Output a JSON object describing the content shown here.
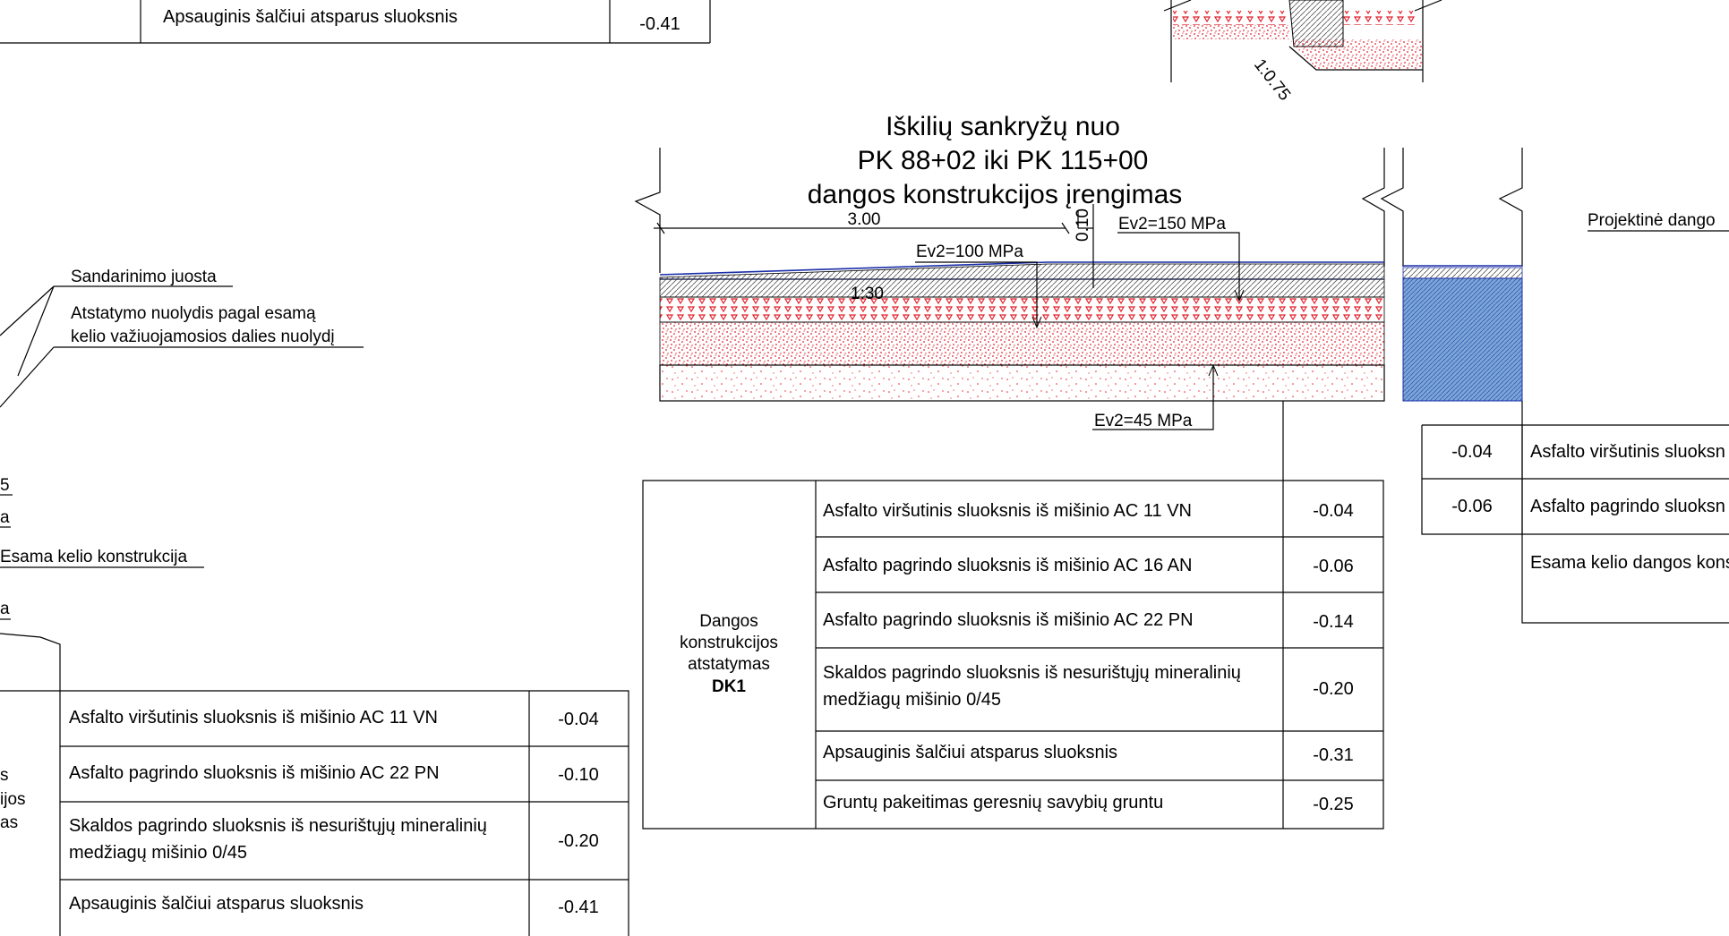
{
  "title": {
    "line1": "Iškilių sankryžų nuo",
    "line2": "PK 88+02 iki PK 115+00",
    "line3": "dangos konstrukcijos įrengimas"
  },
  "dimensions": {
    "width": "3.00",
    "slope": "1:30",
    "thickness": "0.10",
    "side_slope": "1:0.75"
  },
  "moduli": {
    "ev_top_left": "Ev2=100 MPa",
    "ev_top_right": "Ev2=150 MPa",
    "ev_bottom": "Ev2=45 MPa"
  },
  "leaders": {
    "sealing_strip": "Sandarinimo juosta",
    "slope_note_line1": "Atstatymo nuolydis pagal esamą",
    "slope_note_line2": "kelio važiuojamosios dalies nuolydį",
    "existing_road": "Esama kelio konstrukcija",
    "partial_5": "5",
    "partial_a1": "a",
    "partial_a2": "a",
    "projected_pavement": "Projektinė dango"
  },
  "table_top_left": {
    "rows": [
      {
        "label": "Apsauginis šalčiui atsparus sluoksnis",
        "value": "-0.41"
      }
    ]
  },
  "table_dk1": {
    "heading_line1": "Dangos",
    "heading_line2": "konstrukcijos",
    "heading_line3": "atstatymas",
    "heading_code": "DK1",
    "rows": [
      {
        "label": "Asfalto viršutinis sluoksnis iš mišinio AC 11 VN",
        "value": "-0.04"
      },
      {
        "label": "Asfalto pagrindo sluoksnis iš mišinio AC 16 AN",
        "value": "-0.06"
      },
      {
        "label": "Asfalto pagrindo sluoksnis iš mišinio AC 22 PN",
        "value": "-0.14"
      },
      {
        "label": "Skaldos pagrindo sluoksnis iš nesurištųjų mineralinių",
        "label2": "medžiagų mišinio 0/45",
        "value": "-0.20"
      },
      {
        "label": "Apsauginis šalčiui atsparus sluoksnis",
        "value": "-0.31"
      },
      {
        "label": "Gruntų pakeitimas geresnių savybių gruntu",
        "value": "-0.25"
      }
    ]
  },
  "table_bottom_left": {
    "heading_frag1": "s",
    "heading_frag2": "ijos",
    "heading_frag3": "as",
    "rows": [
      {
        "label": "Asfalto viršutinis sluoksnis iš mišinio AC 11 VN",
        "value": "-0.04"
      },
      {
        "label": "Asfalto pagrindo sluoksnis iš mišinio AC 22 PN",
        "value": "-0.10"
      },
      {
        "label": "Skaldos pagrindo sluoksnis iš nesurištųjų mineralinių",
        "label2": "medžiagų mišinio 0/45",
        "value": "-0.20"
      },
      {
        "label": "Apsauginis šalčiui atsparus sluoksnis",
        "value": "-0.41"
      }
    ]
  },
  "table_right": {
    "rows": [
      {
        "value": "-0.04",
        "label": "Asfalto viršutinis sluoksn"
      },
      {
        "value": "-0.06",
        "label": "Asfalto pagrindo sluoksn"
      },
      {
        "value": "",
        "label": "Esama kelio dangos kons"
      }
    ]
  },
  "colors": {
    "line": "#000000",
    "hatch_red": "#e0202a",
    "blue_fill": "#7aa6d8",
    "blue_line": "#1a2ea8"
  }
}
